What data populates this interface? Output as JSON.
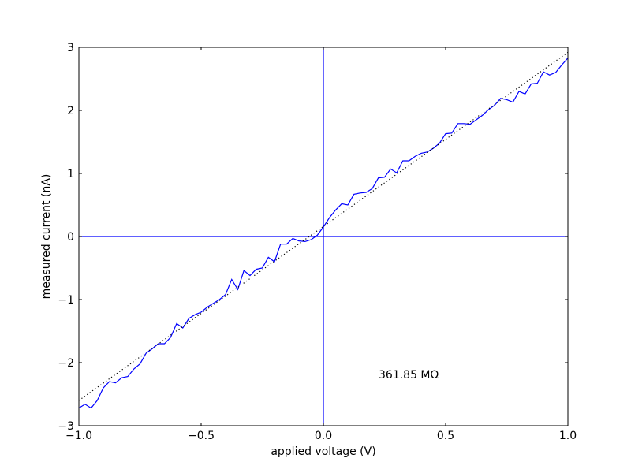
{
  "chart_data": {
    "type": "line",
    "xlabel": "applied voltage (V)",
    "ylabel": "measured current (nA)",
    "annotation": "361.85 MΩ",
    "series": [
      {
        "color": "#0000ff",
        "style": "solid",
        "x": [
          -1,
          -0.975,
          -0.95,
          -0.925,
          -0.9,
          -0.875,
          -0.85,
          -0.825,
          -0.8,
          -0.775,
          -0.75,
          -0.725,
          -0.7,
          -0.675,
          -0.65,
          -0.625,
          -0.6,
          -0.575,
          -0.55,
          -0.525,
          -0.5,
          -0.475,
          -0.45,
          -0.425,
          -0.4,
          -0.375,
          -0.35,
          -0.325,
          -0.3,
          -0.275,
          -0.25,
          -0.225,
          -0.2,
          -0.175,
          -0.15,
          -0.125,
          -0.1,
          -0.075,
          -0.05,
          -0.025,
          0,
          0.025,
          0.05,
          0.075,
          0.1,
          0.125,
          0.15,
          0.175,
          0.2,
          0.225,
          0.25,
          0.275,
          0.3,
          0.325,
          0.35,
          0.375,
          0.4,
          0.425,
          0.45,
          0.475,
          0.5,
          0.525,
          0.55,
          0.575,
          0.6,
          0.625,
          0.65,
          0.675,
          0.7,
          0.725,
          0.75,
          0.775,
          0.8,
          0.825,
          0.85,
          0.875,
          0.9,
          0.925,
          0.95,
          0.975,
          1
        ],
        "values": [
          -2.72,
          -2.66,
          -2.72,
          -2.6,
          -2.4,
          -2.3,
          -2.32,
          -2.24,
          -2.22,
          -2.1,
          -2.02,
          -1.85,
          -1.78,
          -1.7,
          -1.7,
          -1.6,
          -1.38,
          -1.45,
          -1.3,
          -1.24,
          -1.2,
          -1.12,
          -1.06,
          -1.0,
          -0.92,
          -0.68,
          -0.84,
          -0.54,
          -0.62,
          -0.52,
          -0.5,
          -0.33,
          -0.4,
          -0.12,
          -0.12,
          -0.03,
          -0.07,
          -0.08,
          -0.05,
          0.02,
          0.15,
          0.3,
          0.42,
          0.52,
          0.5,
          0.67,
          0.69,
          0.7,
          0.76,
          0.93,
          0.94,
          1.07,
          1.01,
          1.2,
          1.2,
          1.27,
          1.32,
          1.34,
          1.4,
          1.48,
          1.63,
          1.64,
          1.79,
          1.79,
          1.78,
          1.85,
          1.92,
          2.01,
          2.08,
          2.19,
          2.17,
          2.13,
          2.3,
          2.26,
          2.42,
          2.43,
          2.61,
          2.56,
          2.6,
          2.72,
          2.83
        ]
      },
      {
        "color": "#000000",
        "style": "dotted",
        "x": [
          -1,
          1
        ],
        "values": [
          -2.6,
          2.92
        ]
      }
    ],
    "hlines": [
      0
    ],
    "vlines": [
      0
    ],
    "refline_color": "#0000ff",
    "xlim": [
      -1,
      1
    ],
    "xticks": [
      {
        "value": -1,
        "label": "−1.0"
      },
      {
        "value": -0.5,
        "label": "−0.5"
      },
      {
        "value": 0,
        "label": "0.0"
      },
      {
        "value": 0.5,
        "label": "0.5"
      },
      {
        "value": 1,
        "label": "1.0"
      }
    ],
    "ylim": [
      -3,
      3
    ],
    "yticks": [
      {
        "value": -3,
        "label": "−3"
      },
      {
        "value": -2,
        "label": "−2"
      },
      {
        "value": -1,
        "label": "−1"
      },
      0,
      1,
      2,
      3
    ]
  }
}
